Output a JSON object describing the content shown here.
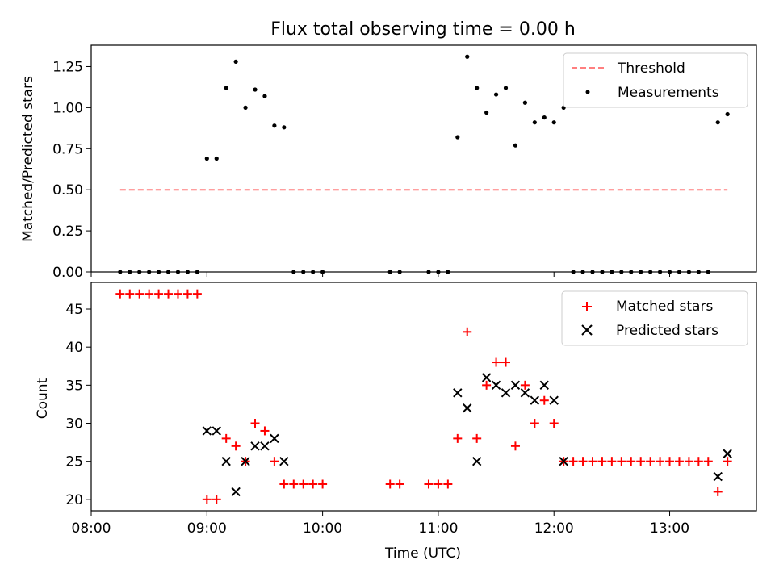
{
  "chart_data": [
    {
      "type": "scatter",
      "title": "Flux total observing time = 0.00 h",
      "xlabel": "",
      "ylabel": "Matched/Predicted stars",
      "xlim": [
        "08:00",
        "13:45"
      ],
      "ylim": [
        0,
        1.38
      ],
      "yticks": [
        "0.00",
        "0.25",
        "0.50",
        "0.75",
        "1.00",
        "1.25"
      ],
      "legend_position": "top-right",
      "series": [
        {
          "name": "Threshold",
          "type": "line",
          "style": "dashed",
          "color": "#ff7f7f",
          "x": [
            "08:15",
            "13:30"
          ],
          "values": [
            0.5,
            0.5
          ]
        },
        {
          "name": "Measurements",
          "type": "scatter",
          "color": "#000000",
          "x": [
            "08:15",
            "08:20",
            "08:25",
            "08:30",
            "08:35",
            "08:40",
            "08:45",
            "08:50",
            "08:55",
            "09:00",
            "09:05",
            "09:10",
            "09:15",
            "09:20",
            "09:25",
            "09:30",
            "09:35",
            "09:40",
            "09:45",
            "09:50",
            "09:55",
            "10:00",
            "10:35",
            "10:40",
            "10:55",
            "11:00",
            "11:05",
            "11:10",
            "11:15",
            "11:20",
            "11:25",
            "11:30",
            "11:35",
            "11:40",
            "11:45",
            "11:50",
            "11:55",
            "12:00",
            "12:05",
            "12:10",
            "12:15",
            "12:20",
            "12:25",
            "12:30",
            "12:35",
            "12:40",
            "12:45",
            "12:50",
            "12:55",
            "13:00",
            "13:05",
            "13:10",
            "13:15",
            "13:20",
            "13:25",
            "13:30"
          ],
          "values": [
            0,
            0,
            0,
            0,
            0,
            0,
            0,
            0,
            0,
            0.69,
            0.69,
            1.12,
            1.28,
            1.0,
            1.11,
            1.07,
            0.89,
            0.88,
            0,
            0,
            0,
            0,
            0,
            0,
            0,
            0,
            0,
            0.82,
            1.31,
            1.12,
            0.97,
            1.08,
            1.12,
            0.77,
            1.03,
            0.91,
            0.94,
            0.91,
            1.0,
            0,
            0,
            0,
            0,
            0,
            0,
            0,
            0,
            0,
            0,
            0,
            0,
            0,
            0,
            0,
            0.91,
            0.96
          ]
        }
      ],
      "legend": [
        "Threshold",
        "Measurements"
      ]
    },
    {
      "type": "scatter",
      "title": "",
      "xlabel": "Time (UTC)",
      "ylabel": "Count",
      "xlim": [
        "08:00",
        "13:45"
      ],
      "ylim": [
        18.5,
        48.5
      ],
      "xticks": [
        "08:00",
        "09:00",
        "10:00",
        "11:00",
        "12:00",
        "13:00"
      ],
      "yticks": [
        "20",
        "25",
        "30",
        "35",
        "40",
        "45"
      ],
      "legend_position": "top-right",
      "series": [
        {
          "name": "Matched stars",
          "marker": "+",
          "color": "#ff0000",
          "x": [
            "08:15",
            "08:20",
            "08:25",
            "08:30",
            "08:35",
            "08:40",
            "08:45",
            "08:50",
            "08:55",
            "09:00",
            "09:05",
            "09:10",
            "09:15",
            "09:20",
            "09:25",
            "09:30",
            "09:35",
            "09:40",
            "09:45",
            "09:50",
            "09:55",
            "10:00",
            "10:35",
            "10:40",
            "10:55",
            "11:00",
            "11:05",
            "11:10",
            "11:15",
            "11:20",
            "11:25",
            "11:30",
            "11:35",
            "11:40",
            "11:45",
            "11:50",
            "11:55",
            "12:00",
            "12:05",
            "12:10",
            "12:15",
            "12:20",
            "12:25",
            "12:30",
            "12:35",
            "12:40",
            "12:45",
            "12:50",
            "12:55",
            "13:00",
            "13:05",
            "13:10",
            "13:15",
            "13:20",
            "13:25",
            "13:30"
          ],
          "values": [
            47,
            47,
            47,
            47,
            47,
            47,
            47,
            47,
            47,
            20,
            20,
            28,
            27,
            25,
            30,
            29,
            25,
            22,
            22,
            22,
            22,
            22,
            22,
            22,
            22,
            22,
            22,
            28,
            42,
            28,
            35,
            38,
            38,
            27,
            35,
            30,
            33,
            30,
            25,
            25,
            25,
            25,
            25,
            25,
            25,
            25,
            25,
            25,
            25,
            25,
            25,
            25,
            25,
            25,
            21,
            25
          ]
        },
        {
          "name": "Predicted stars",
          "marker": "x",
          "color": "#000000",
          "x": [
            "09:00",
            "09:05",
            "09:10",
            "09:15",
            "09:20",
            "09:25",
            "09:30",
            "09:35",
            "09:40",
            "11:10",
            "11:15",
            "11:20",
            "11:25",
            "11:30",
            "11:35",
            "11:40",
            "11:45",
            "11:50",
            "11:55",
            "12:00",
            "12:05",
            "13:25",
            "13:30"
          ],
          "values": [
            29,
            29,
            25,
            21,
            25,
            27,
            27,
            28,
            25,
            34,
            32,
            25,
            36,
            35,
            34,
            35,
            34,
            33,
            35,
            33,
            25,
            23,
            26
          ]
        }
      ],
      "legend": [
        "Matched stars",
        "Predicted stars"
      ]
    }
  ]
}
